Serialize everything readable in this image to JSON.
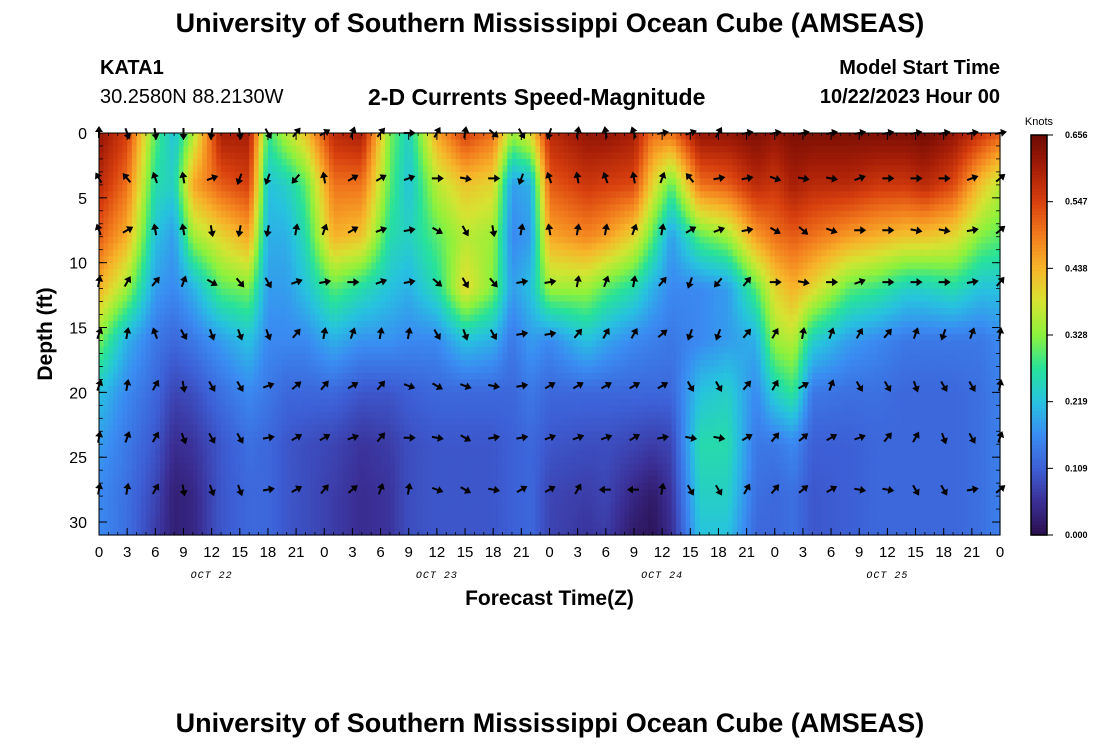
{
  "header": {
    "title": "University of Southern Mississippi Ocean Cube (AMSEAS)",
    "station": "KATA1",
    "coordinates": "30.2580N  88.2130W",
    "subtitle": "2-D Currents Speed-Magnitude",
    "model_start_label": "Model Start Time",
    "model_start_value": "10/22/2023 Hour 00"
  },
  "footer": {
    "title": "University of Southern Mississippi Ocean Cube (AMSEAS)"
  },
  "chart_data": {
    "type": "heatmap",
    "title": "2-D Currents Speed-Magnitude",
    "xlabel": "Forecast Time(Z)",
    "ylabel": "Depth (ft)",
    "x_tick_labels": [
      "0",
      "3",
      "6",
      "9",
      "12",
      "15",
      "18",
      "21",
      "0",
      "3",
      "6",
      "9",
      "12",
      "15",
      "18",
      "21",
      "0",
      "3",
      "6",
      "9",
      "12",
      "15",
      "18",
      "21",
      "0",
      "3",
      "6",
      "9",
      "12",
      "15",
      "18",
      "21",
      "0"
    ],
    "day_labels": [
      "OCT 22",
      "OCT 23",
      "OCT 24",
      "OCT 25"
    ],
    "y_ticks": [
      0,
      5,
      10,
      15,
      20,
      25,
      30
    ],
    "ylim": [
      0,
      31
    ],
    "xlim_hours": [
      0,
      96
    ],
    "colorbar": {
      "label": "Knots",
      "ticks": [
        "0.656",
        "0.547",
        "0.438",
        "0.328",
        "0.219",
        "0.109",
        "0.000"
      ],
      "min": 0.0,
      "max": 0.656,
      "colors": [
        "#2a0f4d",
        "#3b2f96",
        "#3d5fd6",
        "#3a8cf2",
        "#27c2e0",
        "#27e29a",
        "#8cf23c",
        "#d6e332",
        "#f7b52a",
        "#f27b1d",
        "#d8400e",
        "#a51d07",
        "#6b0a04"
      ]
    },
    "arrow_depths_ft": [
      0,
      3.5,
      7.5,
      11.5,
      15.5,
      19.5,
      23.5,
      27.5
    ],
    "arrow_hours": [
      0,
      3,
      6,
      9,
      12,
      15,
      18,
      21,
      24,
      27,
      30,
      33,
      36,
      39,
      42,
      45,
      48,
      51,
      54,
      57,
      60,
      63,
      66,
      69,
      72,
      75,
      78,
      81,
      84,
      87,
      90,
      93,
      96
    ],
    "depth_profiles_ft": [
      0,
      4,
      8,
      12,
      16,
      20,
      24,
      28,
      31
    ],
    "speed_profiles": [
      {
        "hour": 0,
        "speeds": [
          0.62,
          0.58,
          0.52,
          0.44,
          0.32,
          0.22,
          0.18,
          0.16,
          0.16
        ]
      },
      {
        "hour": 3,
        "speeds": [
          0.55,
          0.5,
          0.44,
          0.34,
          0.2,
          0.16,
          0.14,
          0.13,
          0.13
        ]
      },
      {
        "hour": 6,
        "speeds": [
          0.3,
          0.26,
          0.22,
          0.18,
          0.14,
          0.12,
          0.1,
          0.08,
          0.07
        ]
      },
      {
        "hour": 8,
        "speeds": [
          0.22,
          0.24,
          0.18,
          0.16,
          0.12,
          0.08,
          0.05,
          0.03,
          0.03
        ]
      },
      {
        "hour": 10,
        "speeds": [
          0.35,
          0.45,
          0.34,
          0.2,
          0.14,
          0.09,
          0.06,
          0.04,
          0.04
        ]
      },
      {
        "hour": 13,
        "speeds": [
          0.6,
          0.52,
          0.4,
          0.3,
          0.18,
          0.13,
          0.1,
          0.1,
          0.1
        ]
      },
      {
        "hour": 16,
        "speeds": [
          0.6,
          0.55,
          0.45,
          0.32,
          0.22,
          0.16,
          0.13,
          0.12,
          0.12
        ]
      },
      {
        "hour": 18,
        "speeds": [
          0.28,
          0.22,
          0.2,
          0.18,
          0.16,
          0.14,
          0.12,
          0.12,
          0.12
        ]
      },
      {
        "hour": 20,
        "speeds": [
          0.36,
          0.24,
          0.2,
          0.18,
          0.16,
          0.12,
          0.1,
          0.1,
          0.1
        ]
      },
      {
        "hour": 22,
        "speeds": [
          0.42,
          0.3,
          0.26,
          0.22,
          0.16,
          0.12,
          0.09,
          0.09,
          0.09
        ]
      },
      {
        "hour": 25,
        "speeds": [
          0.58,
          0.5,
          0.44,
          0.3,
          0.2,
          0.12,
          0.08,
          0.07,
          0.07
        ]
      },
      {
        "hour": 28,
        "speeds": [
          0.6,
          0.5,
          0.42,
          0.26,
          0.17,
          0.1,
          0.06,
          0.05,
          0.05
        ]
      },
      {
        "hour": 31,
        "speeds": [
          0.32,
          0.3,
          0.26,
          0.22,
          0.17,
          0.1,
          0.07,
          0.06,
          0.06
        ]
      },
      {
        "hour": 33,
        "speeds": [
          0.24,
          0.22,
          0.24,
          0.2,
          0.16,
          0.11,
          0.09,
          0.09,
          0.09
        ]
      },
      {
        "hour": 36,
        "speeds": [
          0.45,
          0.36,
          0.3,
          0.26,
          0.16,
          0.12,
          0.1,
          0.1,
          0.1
        ]
      },
      {
        "hour": 39,
        "speeds": [
          0.55,
          0.42,
          0.36,
          0.4,
          0.22,
          0.12,
          0.1,
          0.1,
          0.1
        ]
      },
      {
        "hour": 42,
        "speeds": [
          0.5,
          0.4,
          0.34,
          0.32,
          0.2,
          0.12,
          0.1,
          0.1,
          0.1
        ]
      },
      {
        "hour": 44,
        "speeds": [
          0.34,
          0.18,
          0.16,
          0.18,
          0.14,
          0.12,
          0.11,
          0.11,
          0.11
        ]
      },
      {
        "hour": 46,
        "speeds": [
          0.4,
          0.2,
          0.18,
          0.22,
          0.18,
          0.14,
          0.12,
          0.12,
          0.12
        ]
      },
      {
        "hour": 48,
        "speeds": [
          0.58,
          0.52,
          0.45,
          0.34,
          0.16,
          0.12,
          0.1,
          0.08,
          0.08
        ]
      },
      {
        "hour": 52,
        "speeds": [
          0.62,
          0.56,
          0.48,
          0.34,
          0.22,
          0.12,
          0.09,
          0.07,
          0.06
        ]
      },
      {
        "hour": 54,
        "speeds": [
          0.62,
          0.55,
          0.46,
          0.3,
          0.19,
          0.12,
          0.09,
          0.08,
          0.07
        ]
      },
      {
        "hour": 57,
        "speeds": [
          0.6,
          0.54,
          0.4,
          0.26,
          0.16,
          0.12,
          0.08,
          0.04,
          0.02
        ]
      },
      {
        "hour": 59,
        "speeds": [
          0.5,
          0.4,
          0.3,
          0.2,
          0.15,
          0.12,
          0.07,
          0.02,
          0.01
        ]
      },
      {
        "hour": 61,
        "speeds": [
          0.5,
          0.3,
          0.18,
          0.16,
          0.14,
          0.12,
          0.08,
          0.06,
          0.05
        ]
      },
      {
        "hour": 64,
        "speeds": [
          0.62,
          0.5,
          0.3,
          0.16,
          0.16,
          0.22,
          0.26,
          0.24,
          0.22
        ]
      },
      {
        "hour": 67,
        "speeds": [
          0.62,
          0.52,
          0.34,
          0.18,
          0.18,
          0.24,
          0.26,
          0.24,
          0.22
        ]
      },
      {
        "hour": 70,
        "speeds": [
          0.64,
          0.58,
          0.46,
          0.3,
          0.2,
          0.16,
          0.14,
          0.13,
          0.12
        ]
      },
      {
        "hour": 72,
        "speeds": [
          0.62,
          0.56,
          0.5,
          0.4,
          0.34,
          0.24,
          0.14,
          0.12,
          0.12
        ]
      },
      {
        "hour": 74,
        "speeds": [
          0.64,
          0.6,
          0.52,
          0.44,
          0.36,
          0.28,
          0.16,
          0.13,
          0.13
        ]
      },
      {
        "hour": 76,
        "speeds": [
          0.64,
          0.58,
          0.5,
          0.4,
          0.24,
          0.14,
          0.11,
          0.1,
          0.1
        ]
      },
      {
        "hour": 80,
        "speeds": [
          0.64,
          0.58,
          0.46,
          0.3,
          0.18,
          0.13,
          0.11,
          0.11,
          0.11
        ]
      },
      {
        "hour": 83,
        "speeds": [
          0.64,
          0.56,
          0.44,
          0.28,
          0.16,
          0.13,
          0.12,
          0.12,
          0.12
        ]
      },
      {
        "hour": 86,
        "speeds": [
          0.64,
          0.56,
          0.42,
          0.24,
          0.14,
          0.12,
          0.12,
          0.12,
          0.12
        ]
      },
      {
        "hour": 88,
        "speeds": [
          0.65,
          0.58,
          0.42,
          0.24,
          0.14,
          0.12,
          0.12,
          0.12,
          0.12
        ]
      },
      {
        "hour": 91,
        "speeds": [
          0.62,
          0.54,
          0.4,
          0.26,
          0.14,
          0.12,
          0.12,
          0.12,
          0.12
        ]
      },
      {
        "hour": 94,
        "speeds": [
          0.56,
          0.42,
          0.32,
          0.22,
          0.14,
          0.13,
          0.13,
          0.13,
          0.13
        ]
      },
      {
        "hour": 96,
        "speeds": [
          0.52,
          0.36,
          0.3,
          0.22,
          0.16,
          0.15,
          0.15,
          0.15,
          0.15
        ]
      }
    ],
    "arrow_direction_deg": [
      [
        0,
        160,
        170,
        180,
        190,
        170,
        150,
        40,
        60,
        20,
        40,
        90,
        30,
        10,
        130,
        150,
        200,
        10,
        350,
        340,
        80,
        70,
        30,
        80,
        80,
        80,
        80,
        80,
        80,
        80,
        80,
        80,
        80
      ],
      [
        330,
        320,
        340,
        350,
        70,
        200,
        200,
        220,
        350,
        60,
        60,
        70,
        90,
        100,
        90,
        200,
        340,
        350,
        340,
        350,
        20,
        320,
        80,
        80,
        110,
        100,
        100,
        70,
        90,
        90,
        90,
        70,
        50
      ],
      [
        340,
        60,
        350,
        350,
        170,
        190,
        190,
        10,
        20,
        60,
        70,
        80,
        120,
        150,
        170,
        10,
        350,
        10,
        10,
        20,
        10,
        60,
        70,
        80,
        120,
        130,
        110,
        90,
        90,
        100,
        100,
        80,
        50
      ],
      [
        10,
        30,
        40,
        20,
        120,
        140,
        150,
        70,
        80,
        90,
        70,
        80,
        130,
        150,
        140,
        80,
        80,
        10,
        20,
        10,
        40,
        200,
        220,
        40,
        90,
        100,
        90,
        70,
        90,
        90,
        90,
        80,
        40
      ],
      [
        20,
        10,
        340,
        150,
        160,
        160,
        160,
        40,
        10,
        20,
        10,
        10,
        150,
        160,
        150,
        80,
        80,
        40,
        30,
        30,
        50,
        200,
        200,
        40,
        30,
        10,
        20,
        30,
        40,
        20,
        200,
        20,
        10
      ],
      [
        20,
        10,
        30,
        170,
        150,
        150,
        70,
        50,
        40,
        60,
        40,
        110,
        120,
        110,
        100,
        80,
        60,
        60,
        60,
        60,
        60,
        150,
        150,
        40,
        30,
        60,
        20,
        150,
        150,
        160,
        150,
        150,
        10
      ],
      [
        10,
        20,
        30,
        160,
        150,
        150,
        80,
        60,
        60,
        70,
        40,
        90,
        100,
        120,
        80,
        80,
        70,
        70,
        70,
        60,
        80,
        100,
        100,
        60,
        40,
        50,
        60,
        70,
        40,
        30,
        160,
        150,
        20
      ],
      [
        10,
        10,
        30,
        170,
        160,
        160,
        80,
        60,
        40,
        50,
        20,
        10,
        110,
        120,
        100,
        60,
        60,
        30,
        270,
        270,
        10,
        150,
        150,
        30,
        40,
        50,
        60,
        100,
        100,
        150,
        150,
        80,
        50
      ]
    ]
  }
}
